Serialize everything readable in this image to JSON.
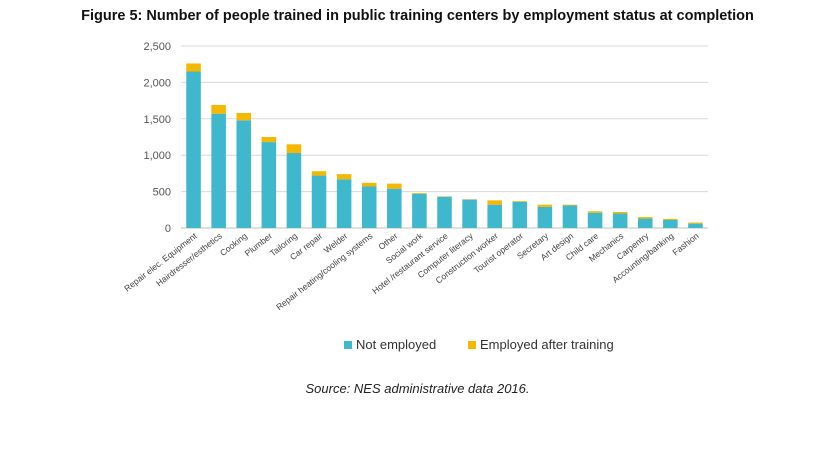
{
  "title": "Figure 5: Number of people trained in public training centers by employment status at completion",
  "source": "Source: NES administrative data 2016.",
  "colors": {
    "not_employed": "#3FB8CE",
    "employed": "#F4B800",
    "grid": "#d9d9d9"
  },
  "chart_data": {
    "type": "bar",
    "stacked": true,
    "title": "Number of people trained in public training centers by employment status at completion",
    "xlabel": "",
    "ylabel": "",
    "ylim": [
      0,
      2500
    ],
    "yticks": [
      0,
      500,
      1000,
      1500,
      2000,
      2500
    ],
    "ytick_labels": [
      "0",
      "500",
      "1,000",
      "1,500",
      "2,000",
      "2,500"
    ],
    "grid": true,
    "legend_position": "bottom",
    "categories": [
      "Repair elec. Equipment",
      "Hairdresser/esthetics",
      "Cooking",
      "Plumber",
      "Tailoring",
      "Car repair",
      "Welder",
      "Repair heating/cooling systems",
      "Other",
      "Social work",
      "Hotel /restaurant service",
      "Computer literacy",
      "Construction worker",
      "Tourist operator",
      "Secretary",
      "Art design",
      "Child care",
      "Mechanics",
      "Carpentry",
      "Accounting/banking",
      "Fashion"
    ],
    "series": [
      {
        "name": "Not employed",
        "values": [
          2150,
          1570,
          1480,
          1180,
          1030,
          720,
          670,
          570,
          540,
          470,
          430,
          390,
          320,
          360,
          290,
          310,
          210,
          200,
          130,
          110,
          60
        ]
      },
      {
        "name": "Employed after training",
        "values": [
          110,
          120,
          100,
          70,
          120,
          60,
          70,
          50,
          70,
          10,
          5,
          5,
          60,
          10,
          30,
          10,
          20,
          20,
          20,
          15,
          15
        ]
      }
    ]
  }
}
